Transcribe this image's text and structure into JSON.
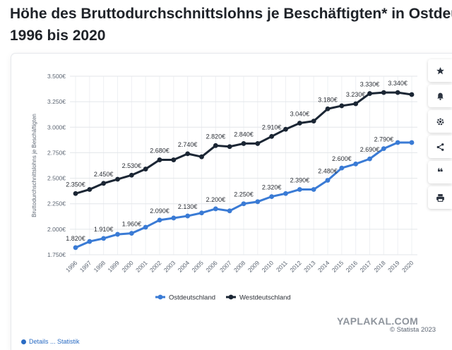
{
  "page": {
    "title": "Höhe des Bruttodurchschnittslohns je Beschäftigten* in Ostdeutschland und Westdeutschland von",
    "title_line2": "1996 bis 2020"
  },
  "toolbar": [
    {
      "name": "star-icon",
      "glyph": "★"
    },
    {
      "name": "bell-icon",
      "glyph": "bell"
    },
    {
      "name": "gear-icon",
      "glyph": "gear"
    },
    {
      "name": "share-icon",
      "glyph": "share"
    },
    {
      "name": "quote-icon",
      "glyph": "❝"
    },
    {
      "name": "print-icon",
      "glyph": "print"
    }
  ],
  "footer": {
    "watermark": "YAPLAKAL.COM",
    "copyright": "© Statista 2023",
    "bottom_stub": "Details ... Statistik"
  },
  "colors": {
    "ost": "#3a7bd5",
    "west": "#1b2634",
    "grid": "#e3e6ea",
    "axis_text": "#5d6673",
    "label_text": "#2b2f36"
  },
  "chart_data": {
    "type": "line",
    "ylabel": "Bruttodurchschnittslohns je Beschäftigten",
    "xlabel": "",
    "ylim": [
      1750,
      3500
    ],
    "yticks": [
      1750,
      2000,
      2250,
      2500,
      2750,
      3000,
      3250,
      3500
    ],
    "ytick_labels": [
      "1.750€",
      "2.000€",
      "2.250€",
      "2.500€",
      "2.750€",
      "3.000€",
      "3.250€",
      "3.500€"
    ],
    "grid": true,
    "legend_position": "bottom-center",
    "categories": [
      "1996",
      "1997",
      "1998",
      "1999",
      "2000",
      "2001",
      "2002",
      "2003",
      "2004",
      "2005",
      "2006",
      "2007",
      "2008",
      "2009",
      "2010",
      "2011",
      "2012",
      "2013",
      "2014",
      "2015",
      "2016",
      "2017",
      "2018",
      "2019",
      "2020"
    ],
    "series": [
      {
        "name": "Ostdeutschland",
        "color": "#3a7bd5",
        "values": [
          1820,
          1880,
          1910,
          1950,
          1960,
          2020,
          2090,
          2110,
          2130,
          2160,
          2200,
          2180,
          2250,
          2270,
          2320,
          2350,
          2390,
          2390,
          2480,
          2600,
          2640,
          2690,
          2790,
          2850,
          2850
        ],
        "labels": {
          "1996": "1.820€",
          "1998": "1.910€",
          "2000": "1.960€",
          "2002": "2.090€",
          "2004": "2.130€",
          "2006": "2.200€",
          "2008": "2.250€",
          "2010": "2.320€",
          "2012": "2.390€",
          "2014": "2.480€",
          "2015": "2.600€",
          "2017": "2.690€",
          "2018": "2.790€"
        }
      },
      {
        "name": "Westdeutschland",
        "color": "#1b2634",
        "values": [
          2350,
          2390,
          2450,
          2490,
          2530,
          2590,
          2680,
          2680,
          2740,
          2710,
          2820,
          2810,
          2840,
          2840,
          2910,
          2980,
          3040,
          3060,
          3180,
          3210,
          3230,
          3330,
          3340,
          3340,
          3320
        ],
        "labels": {
          "1996": "2.350€",
          "1998": "2.450€",
          "2000": "2.530€",
          "2002": "2.680€",
          "2004": "2.740€",
          "2006": "2.820€",
          "2008": "2.840€",
          "2010": "2.910€",
          "2012": "3.040€",
          "2014": "3.180€",
          "2016": "3.230€",
          "2017": "3.330€",
          "2019": "3.340€"
        }
      }
    ]
  }
}
